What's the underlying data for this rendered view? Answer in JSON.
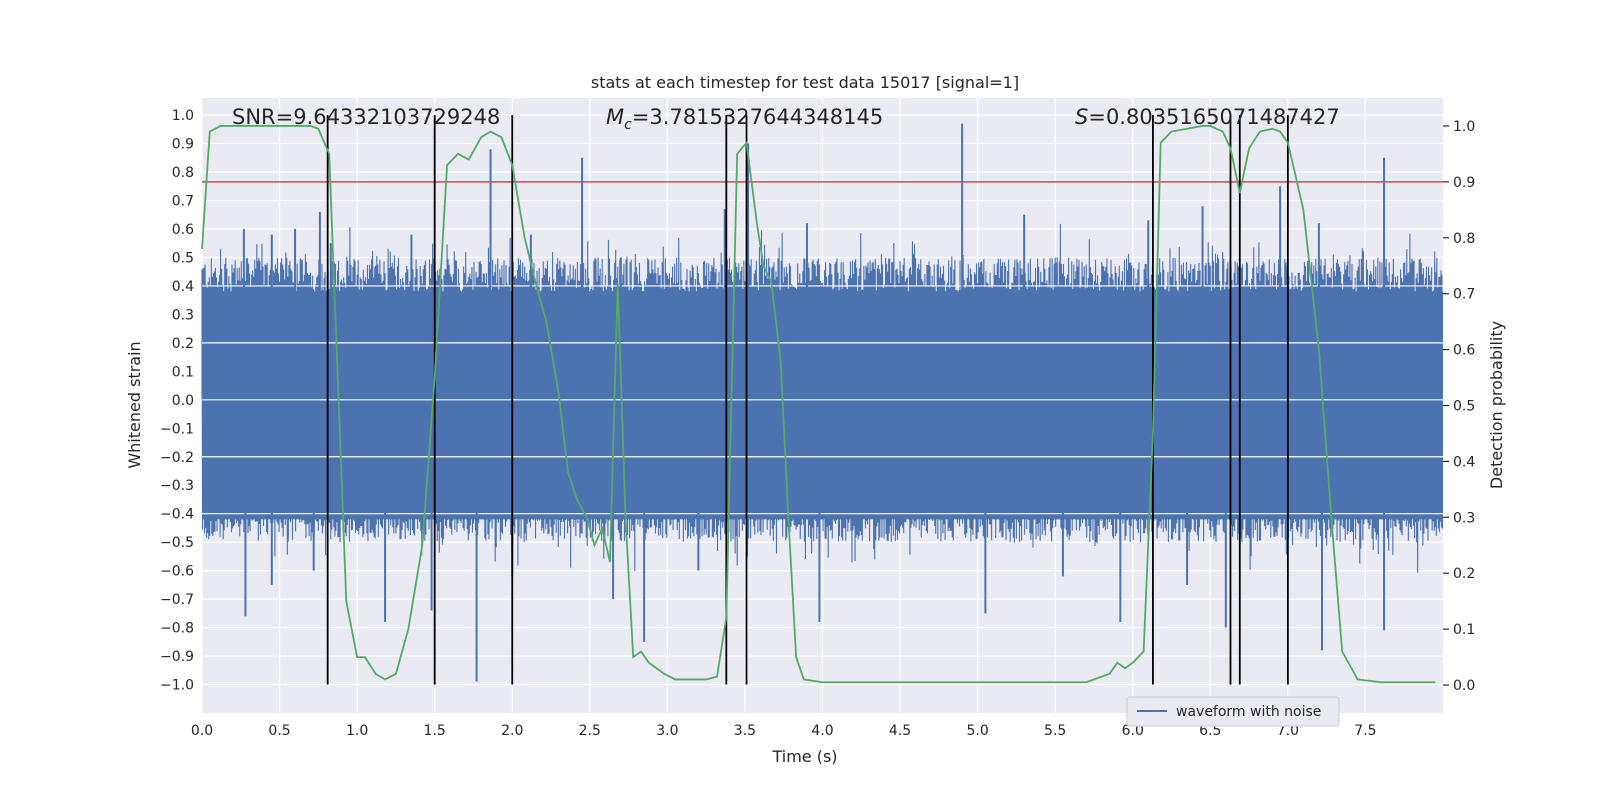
{
  "chart_data": {
    "type": "line",
    "title": "stats at each timestep for test data 15017 [signal=1]",
    "xlabel": "Time (s)",
    "ylabel": "Whitened strain",
    "ylabel_right": "Detection probability",
    "xlim": [
      0.0,
      8.0
    ],
    "ylim": [
      -1.1,
      1.06
    ],
    "ylim_right": [
      -0.05,
      1.05
    ],
    "x_ticks": [
      "0.0",
      "0.5",
      "1.0",
      "1.5",
      "2.0",
      "2.5",
      "3.0",
      "3.5",
      "4.0",
      "4.5",
      "5.0",
      "5.5",
      "6.0",
      "6.5",
      "7.0",
      "7.5"
    ],
    "y_ticks": [
      "1.0",
      "0.9",
      "0.8",
      "0.7",
      "0.6",
      "0.5",
      "0.4",
      "0.3",
      "0.2",
      "0.1",
      "0.0",
      "−0.1",
      "−0.2",
      "−0.3",
      "−0.4",
      "−0.5",
      "−0.6",
      "−0.7",
      "−0.8",
      "−0.9",
      "−1.0"
    ],
    "y_right_ticks": [
      "1.0",
      "0.9",
      "0.8",
      "0.7",
      "0.6",
      "0.5",
      "0.4",
      "0.3",
      "0.2",
      "0.1",
      "0.0"
    ],
    "annotations": {
      "snr": "SNR=9.64332103729248",
      "mc_prefix": "M",
      "mc_sub": "c",
      "mc_value": "=3.7815327644348145",
      "s_prefix": "S",
      "s_value": "=0.8035165071487427"
    },
    "threshold": 0.9,
    "threshold_color": "#c44e52",
    "vertical_lines_x": [
      0.81,
      1.5,
      2.0,
      3.38,
      3.51,
      6.13,
      6.63,
      6.69,
      7.0
    ],
    "series": [
      {
        "name": "waveform with noise",
        "color": "#4c72b0",
        "axis": "left",
        "spikes_positive": [
          [
            0.27,
            0.6
          ],
          [
            0.45,
            0.58
          ],
          [
            0.6,
            0.6
          ],
          [
            0.76,
            0.66
          ],
          [
            0.83,
            0.55
          ],
          [
            1.35,
            0.58
          ],
          [
            1.86,
            0.88
          ],
          [
            2.12,
            0.58
          ],
          [
            2.45,
            0.85
          ],
          [
            2.7,
            0.5
          ],
          [
            3.37,
            0.67
          ],
          [
            3.52,
            0.9
          ],
          [
            3.9,
            0.62
          ],
          [
            4.9,
            0.97
          ],
          [
            5.3,
            0.65
          ],
          [
            6.1,
            0.63
          ],
          [
            6.45,
            0.68
          ],
          [
            6.95,
            0.75
          ],
          [
            7.2,
            0.62
          ],
          [
            7.62,
            0.85
          ]
        ],
        "spikes_negative": [
          [
            0.28,
            -0.76
          ],
          [
            0.45,
            -0.65
          ],
          [
            0.72,
            -0.6
          ],
          [
            1.18,
            -0.78
          ],
          [
            1.48,
            -0.74
          ],
          [
            1.77,
            -0.99
          ],
          [
            2.0,
            -0.62
          ],
          [
            2.65,
            -0.7
          ],
          [
            2.85,
            -0.85
          ],
          [
            3.2,
            -0.6
          ],
          [
            3.98,
            -0.78
          ],
          [
            5.05,
            -0.75
          ],
          [
            5.55,
            -0.62
          ],
          [
            5.92,
            -0.78
          ],
          [
            6.35,
            -0.65
          ],
          [
            6.6,
            -0.8
          ],
          [
            7.22,
            -0.88
          ],
          [
            7.62,
            -0.81
          ]
        ]
      },
      {
        "name": "detection probability",
        "color": "#55a868",
        "axis": "right",
        "x": [
          0.0,
          0.05,
          0.12,
          0.2,
          0.3,
          0.4,
          0.5,
          0.6,
          0.7,
          0.75,
          0.82,
          0.93,
          1.0,
          1.05,
          1.12,
          1.18,
          1.25,
          1.33,
          1.42,
          1.5,
          1.58,
          1.65,
          1.72,
          1.8,
          1.86,
          1.93,
          2.0,
          2.08,
          2.15,
          2.22,
          2.3,
          2.36,
          2.42,
          2.48,
          2.53,
          2.58,
          2.63,
          2.68,
          2.73,
          2.78,
          2.83,
          2.88,
          2.93,
          2.98,
          3.05,
          3.15,
          3.25,
          3.32,
          3.38,
          3.45,
          3.51,
          3.58,
          3.62,
          3.67,
          3.73,
          3.78,
          3.83,
          3.88,
          4.0,
          4.2,
          4.5,
          4.8,
          5.0,
          5.2,
          5.5,
          5.7,
          5.85,
          5.9,
          5.95,
          6.0,
          6.07,
          6.13,
          6.18,
          6.25,
          6.35,
          6.45,
          6.5,
          6.58,
          6.63,
          6.69,
          6.75,
          6.82,
          6.9,
          6.95,
          7.0,
          7.1,
          7.2,
          7.28,
          7.35,
          7.45,
          7.6,
          7.8,
          7.95
        ],
        "y": [
          0.78,
          0.99,
          1.0,
          1.0,
          1.0,
          1.0,
          1.0,
          1.0,
          1.0,
          0.995,
          0.95,
          0.15,
          0.05,
          0.05,
          0.02,
          0.01,
          0.02,
          0.1,
          0.25,
          0.55,
          0.93,
          0.95,
          0.94,
          0.98,
          0.99,
          0.98,
          0.93,
          0.8,
          0.72,
          0.65,
          0.52,
          0.38,
          0.33,
          0.3,
          0.25,
          0.28,
          0.22,
          0.72,
          0.3,
          0.05,
          0.06,
          0.04,
          0.03,
          0.02,
          0.01,
          0.01,
          0.01,
          0.015,
          0.12,
          0.95,
          0.97,
          0.82,
          0.75,
          0.72,
          0.58,
          0.3,
          0.05,
          0.01,
          0.005,
          0.005,
          0.005,
          0.005,
          0.005,
          0.005,
          0.005,
          0.005,
          0.02,
          0.04,
          0.03,
          0.04,
          0.06,
          0.45,
          0.97,
          0.99,
          0.995,
          1.0,
          1.0,
          0.99,
          0.96,
          0.88,
          0.96,
          0.99,
          0.995,
          0.99,
          0.97,
          0.85,
          0.6,
          0.3,
          0.06,
          0.01,
          0.005,
          0.005,
          0.005
        ]
      }
    ],
    "legend": [
      {
        "label": "waveform with noise",
        "color": "#4c72b0"
      }
    ],
    "legend_position": "bottom-right",
    "grid": true,
    "background_color": "#eaeaf2"
  }
}
